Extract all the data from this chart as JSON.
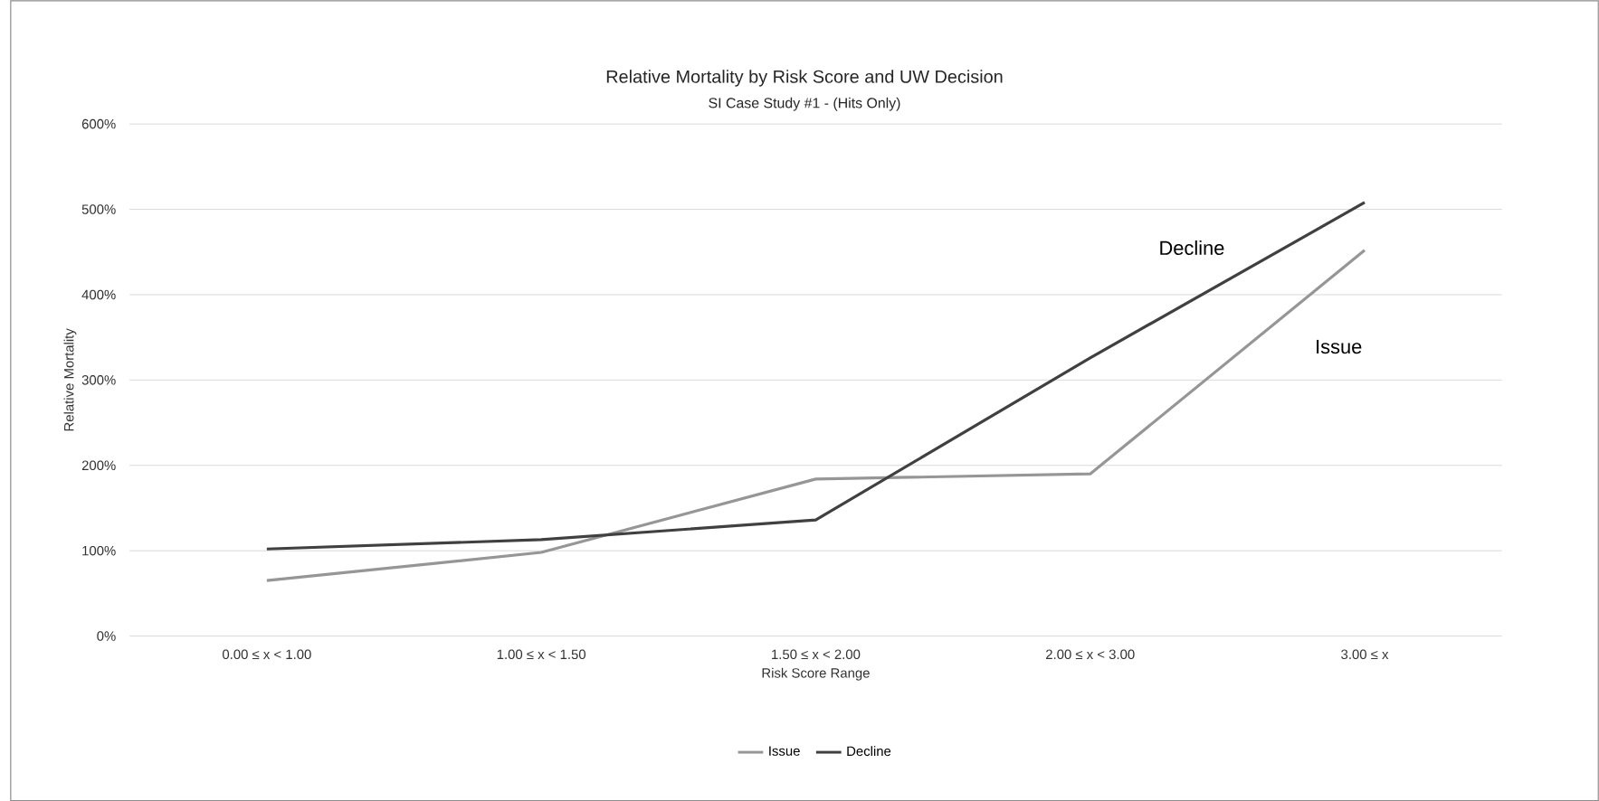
{
  "chart_data": {
    "type": "line",
    "title": "Relative Mortality by Risk Score and UW Decision",
    "subtitle": "SI Case Study #1 - (Hits Only)",
    "xlabel": "Risk Score Range",
    "ylabel": "Relative Mortality",
    "categories": [
      "0.00 ≤ x < 1.00",
      "1.00 ≤ x < 1.50",
      "1.50 ≤ x < 2.00",
      "2.00 ≤ x < 3.00",
      "3.00 ≤ x"
    ],
    "series": [
      {
        "name": "Issue",
        "color": "#969696",
        "values": [
          65,
          98,
          184,
          190,
          452
        ]
      },
      {
        "name": "Decline",
        "color": "#404040",
        "values": [
          102,
          113,
          136,
          326,
          508
        ]
      }
    ],
    "ylim": [
      0,
      600
    ],
    "yticks": [
      {
        "value": 0,
        "label": "0%"
      },
      {
        "value": 100,
        "label": "100%"
      },
      {
        "value": 200,
        "label": "200%"
      },
      {
        "value": 300,
        "label": "300%"
      },
      {
        "value": 400,
        "label": "400%"
      },
      {
        "value": 500,
        "label": "500%"
      },
      {
        "value": 600,
        "label": "600%"
      }
    ],
    "grid": "y",
    "legend": "bottom",
    "marker": "none",
    "line_style": "solid",
    "annotations": [
      "Decline",
      "Issue"
    ]
  }
}
